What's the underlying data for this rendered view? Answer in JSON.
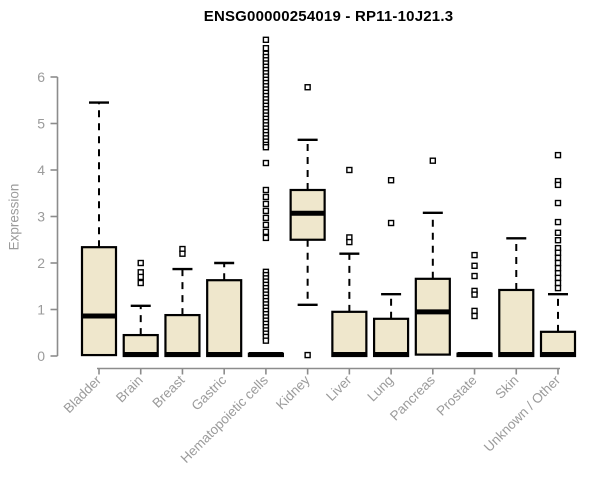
{
  "chart_data": {
    "type": "boxplot",
    "title": "ENSG00000254019 - RP11-10J21.3",
    "ylabel": "Expression",
    "xlabel": "",
    "ylim": [
      0,
      6.9
    ],
    "yticks": [
      0,
      1,
      2,
      3,
      4,
      5,
      6
    ],
    "grid": false,
    "legend": null,
    "boxes": [
      {
        "category": "Bladder",
        "q1": 0.02,
        "median": 0.86,
        "q3": 2.34,
        "whisker_low": null,
        "whisker_high": 5.45,
        "outliers": []
      },
      {
        "category": "Brain",
        "q1": 0.0,
        "median": 0.02,
        "q3": 0.45,
        "whisker_low": null,
        "whisker_high": 1.08,
        "outliers": [
          2.0,
          1.8,
          1.7,
          1.57
        ]
      },
      {
        "category": "Breast",
        "q1": 0.0,
        "median": 0.02,
        "q3": 0.88,
        "whisker_low": null,
        "whisker_high": 1.87,
        "outliers": [
          2.3,
          2.2
        ]
      },
      {
        "category": "Gastric",
        "q1": 0.0,
        "median": 0.02,
        "q3": 1.63,
        "whisker_low": null,
        "whisker_high": 2.0,
        "outliers": []
      },
      {
        "category": "Hematopoietic cells",
        "q1": 0.0,
        "median": 0.02,
        "q3": 0.05,
        "whisker_low": null,
        "whisker_high": null,
        "outliers": [
          6.8,
          6.62,
          6.5,
          6.43,
          6.36,
          6.29,
          6.22,
          6.15,
          6.08,
          6.01,
          5.94,
          5.87,
          5.8,
          5.73,
          5.66,
          5.59,
          5.52,
          5.45,
          5.38,
          5.31,
          5.24,
          5.17,
          5.1,
          5.03,
          4.96,
          4.89,
          4.82,
          4.75,
          4.68,
          4.61,
          4.54,
          4.49,
          4.15,
          3.57,
          3.42,
          3.27,
          3.12,
          2.97,
          2.82,
          2.67,
          2.54,
          1.81,
          1.74,
          1.67,
          1.6,
          1.53,
          1.46,
          1.39,
          1.32,
          1.25,
          1.18,
          1.11,
          1.04,
          0.97,
          0.9,
          0.83,
          0.76,
          0.69,
          0.62,
          0.55,
          0.48,
          0.41,
          0.33
        ]
      },
      {
        "category": "Kidney",
        "q1": 2.5,
        "median": 3.07,
        "q3": 3.57,
        "whisker_low": 1.1,
        "whisker_high": 4.65,
        "outliers": [
          5.78,
          0.02
        ]
      },
      {
        "category": "Liver",
        "q1": 0.0,
        "median": 0.02,
        "q3": 0.95,
        "whisker_low": null,
        "whisker_high": 2.2,
        "outliers": [
          4.0,
          2.55,
          2.45
        ]
      },
      {
        "category": "Lung",
        "q1": 0.0,
        "median": 0.02,
        "q3": 0.8,
        "whisker_low": null,
        "whisker_high": 1.33,
        "outliers": [
          3.78,
          2.86
        ]
      },
      {
        "category": "Pancreas",
        "q1": 0.03,
        "median": 0.95,
        "q3": 1.66,
        "whisker_low": null,
        "whisker_high": 3.08,
        "outliers": [
          4.2
        ]
      },
      {
        "category": "Prostate",
        "q1": 0.0,
        "median": 0.02,
        "q3": 0.05,
        "whisker_low": null,
        "whisker_high": null,
        "outliers": [
          2.17,
          1.94,
          1.72,
          1.4,
          1.32,
          0.97,
          0.86
        ]
      },
      {
        "category": "Skin",
        "q1": 0.0,
        "median": 0.02,
        "q3": 1.42,
        "whisker_low": null,
        "whisker_high": 2.53,
        "outliers": []
      },
      {
        "category": "Unknown / Other",
        "q1": 0.0,
        "median": 0.02,
        "q3": 0.52,
        "whisker_low": null,
        "whisker_high": 1.33,
        "outliers": [
          4.32,
          3.76,
          3.68,
          3.29,
          2.88,
          2.65,
          2.49,
          2.32,
          2.22,
          2.11,
          2.0,
          1.89,
          1.78,
          1.68,
          1.57,
          1.46
        ]
      }
    ],
    "style": {
      "box_fill": "#EFE7CC",
      "box_stroke": "#000000",
      "median_color": "#000000",
      "outlier_color": "#000000",
      "axis_color": "#8C8C8C",
      "tick_label_color": "#9B9B9B",
      "title_color": "#000000",
      "background": "#FFFFFF"
    }
  }
}
